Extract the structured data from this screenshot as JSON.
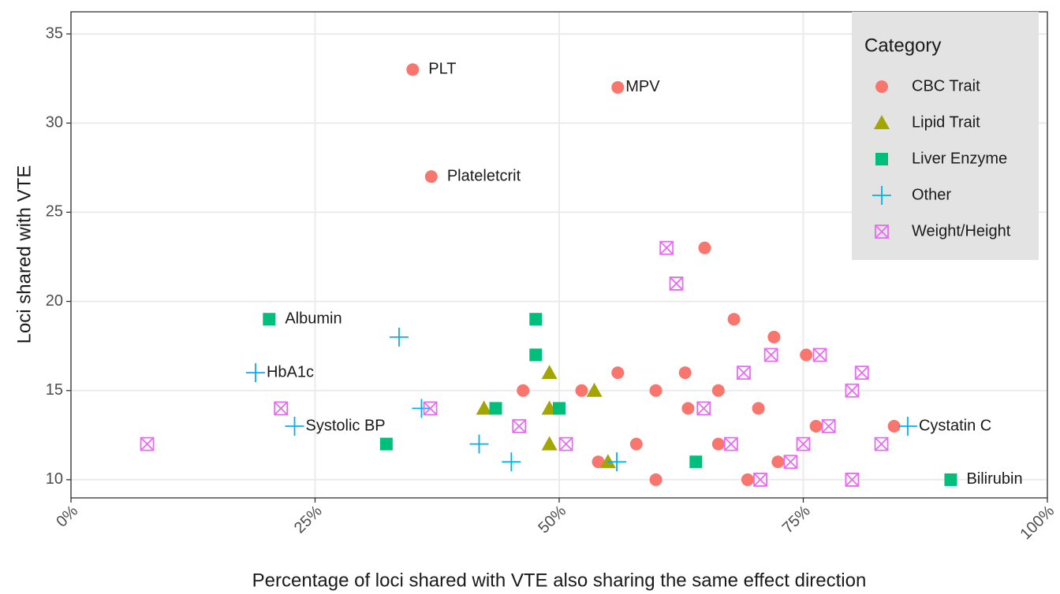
{
  "chart_data": {
    "type": "scatter",
    "xlabel": "Percentage of loci shared with VTE also sharing the same effect direction",
    "ylabel": "Loci shared with VTE",
    "xlim": [
      0,
      100
    ],
    "ylim": [
      8.98,
      36.24
    ],
    "xticks": [
      {
        "value": 0,
        "label": "0%"
      },
      {
        "value": 25,
        "label": "25%"
      },
      {
        "value": 50,
        "label": "50%"
      },
      {
        "value": 75,
        "label": "75%"
      },
      {
        "value": 100,
        "label": "100%"
      }
    ],
    "yticks": [
      10,
      15,
      20,
      25,
      30,
      35
    ],
    "grid": true,
    "legend_title": "Category",
    "legend_position": "top-right",
    "series": [
      {
        "name": "CBC Trait",
        "color": "#F8766D",
        "shape": "circle",
        "x": [
          35.0,
          56.0,
          36.9,
          64.9,
          67.9,
          72.0,
          75.3,
          56.0,
          62.9,
          46.3,
          52.3,
          59.9,
          66.3,
          63.2,
          70.4,
          76.3,
          84.3,
          57.9,
          66.3,
          54.0,
          72.4,
          59.9,
          69.3
        ],
        "values": [
          33,
          32,
          27,
          23,
          19,
          18,
          17,
          16,
          16,
          15,
          15,
          15,
          15,
          14,
          14,
          13,
          13,
          12,
          12,
          11,
          11,
          10,
          10
        ],
        "labels": [
          "PLT",
          "MPV",
          "Plateletcrit",
          null,
          null,
          null,
          null,
          null,
          null,
          null,
          null,
          null,
          null,
          null,
          null,
          null,
          null,
          null,
          null,
          null,
          null,
          null,
          null
        ]
      },
      {
        "name": "Lipid Trait",
        "color": "#A3A500",
        "shape": "triangle",
        "x": [
          49.0,
          53.6,
          42.3,
          49.0,
          49.0,
          55.0
        ],
        "values": [
          16,
          15,
          14,
          14,
          12,
          11
        ],
        "labels": [
          null,
          null,
          null,
          null,
          null,
          null
        ]
      },
      {
        "name": "Liver Enzyme",
        "color": "#00BF7D",
        "shape": "square",
        "x": [
          20.3,
          47.6,
          47.6,
          43.5,
          50.0,
          32.3,
          64.0,
          90.1
        ],
        "values": [
          19,
          19,
          17,
          14,
          14,
          12,
          11,
          10
        ],
        "labels": [
          "Albumin",
          null,
          null,
          null,
          null,
          null,
          null,
          "Bilirubin"
        ]
      },
      {
        "name": "Other",
        "color": "#00B0F6",
        "shape": "plus",
        "x": [
          33.6,
          18.9,
          35.9,
          22.9,
          41.8,
          45.1,
          55.9,
          85.7
        ],
        "values": [
          18,
          16,
          14,
          13,
          12,
          11,
          11,
          13
        ],
        "labels": [
          null,
          "HbA1c",
          null,
          "Systolic BP",
          null,
          null,
          null,
          "Cystatin C"
        ]
      },
      {
        "name": "Weight/Height",
        "color": "#E76BF3",
        "shape": "boxx",
        "x": [
          61.0,
          62.0,
          68.9,
          71.7,
          76.7,
          81.0,
          80.0,
          21.5,
          36.8,
          64.8,
          45.9,
          77.6,
          7.8,
          50.7,
          67.6,
          75.0,
          83.0,
          73.7,
          70.6,
          80.0
        ],
        "values": [
          23,
          21,
          16,
          17,
          17,
          16,
          15,
          14,
          14,
          14,
          13,
          13,
          12,
          12,
          12,
          12,
          12,
          11,
          10,
          10
        ],
        "labels": [
          null,
          null,
          null,
          null,
          null,
          null,
          null,
          null,
          null,
          null,
          null,
          null,
          null,
          null,
          null,
          null,
          null,
          null,
          null,
          null
        ]
      }
    ]
  }
}
